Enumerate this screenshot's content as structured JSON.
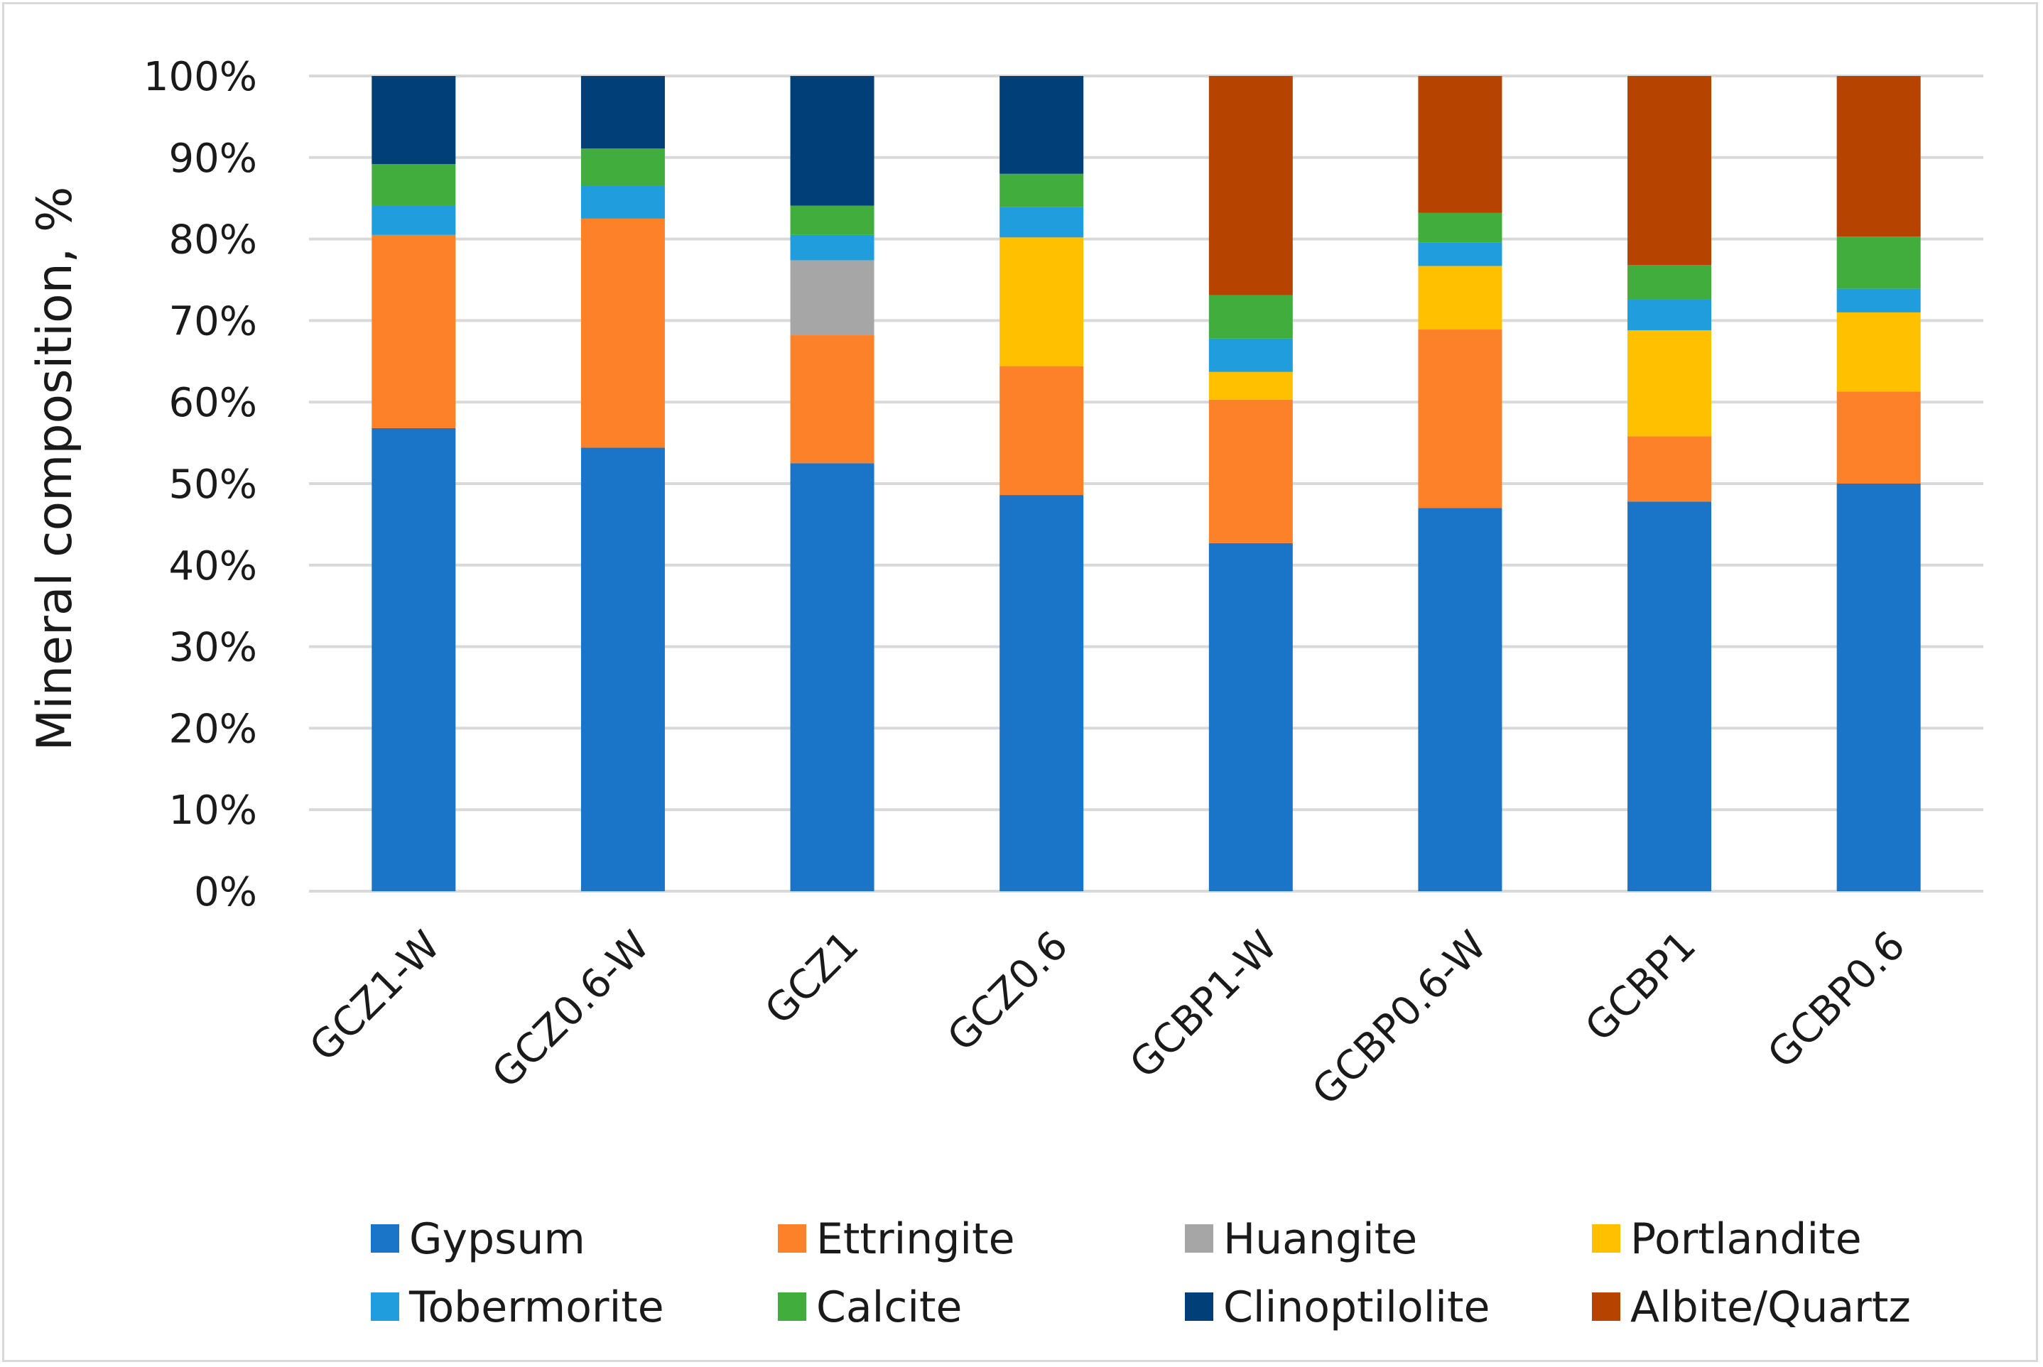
{
  "chart_data": {
    "type": "bar",
    "stacked": true,
    "percent_stacked": true,
    "ylabel": "Mineral composition, %",
    "xlabel": "",
    "ylim": [
      0,
      100
    ],
    "y_ticks": [
      "0%",
      "10%",
      "20%",
      "30%",
      "40%",
      "50%",
      "60%",
      "70%",
      "80%",
      "90%",
      "100%"
    ],
    "grid": "horizontal",
    "legend_position": "bottom",
    "categories": [
      "GCZ1-W",
      "GCZ0.6-W",
      "GCZ1",
      "GCZ0.6",
      "GCBP1-W",
      "GCBP0.6-W",
      "GCBP1",
      "GCBP0.6"
    ],
    "series": [
      {
        "name": "Gypsum",
        "color": "#1a74c8",
        "values": [
          56.8,
          54.4,
          52.5,
          48.6,
          42.7,
          47.0,
          47.8,
          50.0
        ]
      },
      {
        "name": "Ettringite",
        "color": "#fd8128",
        "values": [
          23.7,
          28.1,
          15.7,
          15.8,
          17.6,
          21.9,
          8.0,
          11.3
        ]
      },
      {
        "name": "Huangite",
        "color": "#a6a6a6",
        "values": [
          0,
          0,
          9.2,
          0,
          0,
          0,
          0,
          0
        ]
      },
      {
        "name": "Portlandite",
        "color": "#ffc000",
        "values": [
          0,
          0,
          0,
          15.8,
          3.4,
          7.8,
          13.0,
          9.7
        ]
      },
      {
        "name": "Tobermorite",
        "color": "#1f9ddc",
        "values": [
          3.6,
          4.0,
          3.1,
          3.7,
          4.1,
          2.9,
          3.8,
          2.9
        ]
      },
      {
        "name": "Calcite",
        "color": "#41ad3d",
        "values": [
          5.1,
          4.6,
          3.6,
          4.1,
          5.3,
          3.6,
          4.2,
          6.4
        ]
      },
      {
        "name": "Clinoptilolite",
        "color": "#003f77",
        "values": [
          10.8,
          8.9,
          15.9,
          12.0,
          0,
          0,
          0,
          0
        ]
      },
      {
        "name": "Albite/Quartz",
        "color": "#b64300",
        "values": [
          0,
          0,
          0,
          0,
          26.9,
          16.8,
          23.2,
          19.7
        ]
      }
    ]
  }
}
